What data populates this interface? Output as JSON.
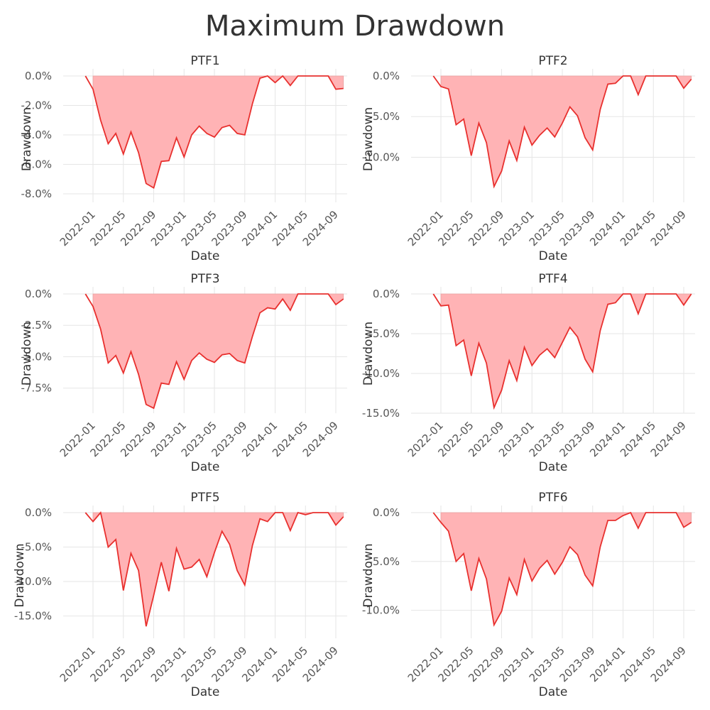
{
  "figure_title": "Maximum Drawdown",
  "colors": {
    "line": "#e8302e",
    "fill": "#ffb3b5",
    "grid": "#e6e6e6",
    "text": "#333333"
  },
  "chart_data": [
    {
      "type": "area",
      "title": "PTF1",
      "xlabel": "Date",
      "ylabel": "Drawdown",
      "x_ticks": [
        "2022-01",
        "2022-05",
        "2022-09",
        "2023-01",
        "2023-05",
        "2023-09",
        "2024-01",
        "2024-05",
        "2024-09"
      ],
      "y_ticks": [
        "0.0%",
        "-2.0%",
        "-4.0%",
        "-6.0%",
        "-8.0%"
      ],
      "ylim": [
        -8.0,
        0.0
      ],
      "x": [
        "2021-12",
        "2022-01",
        "2022-02",
        "2022-03",
        "2022-04",
        "2022-05",
        "2022-06",
        "2022-07",
        "2022-08",
        "2022-09",
        "2022-10",
        "2022-11",
        "2022-12",
        "2023-01",
        "2023-02",
        "2023-03",
        "2023-04",
        "2023-05",
        "2023-06",
        "2023-07",
        "2023-08",
        "2023-09",
        "2023-10",
        "2023-11",
        "2023-12",
        "2024-01",
        "2024-02",
        "2024-03",
        "2024-04",
        "2024-05",
        "2024-06",
        "2024-07",
        "2024-08",
        "2024-09",
        "2024-10"
      ],
      "values": [
        0.0,
        -0.9,
        -3.0,
        -4.6,
        -3.9,
        -5.3,
        -3.8,
        -5.2,
        -7.3,
        -7.6,
        -5.8,
        -5.75,
        -4.2,
        -5.5,
        -4.0,
        -3.4,
        -3.9,
        -4.15,
        -3.5,
        -3.35,
        -3.9,
        -4.0,
        -1.9,
        -0.15,
        0.0,
        -0.45,
        0.0,
        -0.65,
        0.0,
        0.0,
        0.0,
        0.0,
        0.0,
        -0.9,
        -0.85
      ]
    },
    {
      "type": "area",
      "title": "PTF2",
      "xlabel": "Date",
      "ylabel": "Drawdown",
      "x_ticks": [
        "2022-01",
        "2022-05",
        "2022-09",
        "2023-01",
        "2023-05",
        "2023-09",
        "2024-01",
        "2024-05",
        "2024-09"
      ],
      "y_ticks": [
        "0.0%",
        "-5.0%",
        "-10.0%"
      ],
      "ylim": [
        -14.5,
        0.0
      ],
      "x": [
        "2021-12",
        "2022-01",
        "2022-02",
        "2022-03",
        "2022-04",
        "2022-05",
        "2022-06",
        "2022-07",
        "2022-08",
        "2022-09",
        "2022-10",
        "2022-11",
        "2022-12",
        "2023-01",
        "2023-02",
        "2023-03",
        "2023-04",
        "2023-05",
        "2023-06",
        "2023-07",
        "2023-08",
        "2023-09",
        "2023-10",
        "2023-11",
        "2023-12",
        "2024-01",
        "2024-02",
        "2024-03",
        "2024-04",
        "2024-05",
        "2024-06",
        "2024-07",
        "2024-08",
        "2024-09",
        "2024-10"
      ],
      "values": [
        0.0,
        -1.3,
        -1.6,
        -6.0,
        -5.3,
        -9.8,
        -5.8,
        -8.2,
        -13.6,
        -11.7,
        -8.0,
        -10.4,
        -6.3,
        -8.5,
        -7.3,
        -6.4,
        -7.5,
        -5.8,
        -3.8,
        -4.9,
        -7.6,
        -9.1,
        -4.1,
        -1.0,
        -0.9,
        0.0,
        0.0,
        -2.3,
        0.0,
        0.0,
        0.0,
        0.0,
        0.0,
        -1.5,
        -0.4
      ]
    },
    {
      "type": "area",
      "title": "PTF3",
      "xlabel": "Date",
      "ylabel": "Drawdown",
      "x_ticks": [
        "2022-01",
        "2022-05",
        "2022-09",
        "2023-01",
        "2023-05",
        "2023-09",
        "2024-01",
        "2024-05",
        "2024-09"
      ],
      "y_ticks": [
        "0.0%",
        "-2.5%",
        "-5.0%",
        "-7.5%"
      ],
      "ylim": [
        -9.5,
        0.0
      ],
      "x": [
        "2021-12",
        "2022-01",
        "2022-02",
        "2022-03",
        "2022-04",
        "2022-05",
        "2022-06",
        "2022-07",
        "2022-08",
        "2022-09",
        "2022-10",
        "2022-11",
        "2022-12",
        "2023-01",
        "2023-02",
        "2023-03",
        "2023-04",
        "2023-05",
        "2023-06",
        "2023-07",
        "2023-08",
        "2023-09",
        "2023-10",
        "2023-11",
        "2023-12",
        "2024-01",
        "2024-02",
        "2024-03",
        "2024-04",
        "2024-05",
        "2024-06",
        "2024-07",
        "2024-08",
        "2024-09",
        "2024-10"
      ],
      "values": [
        0.0,
        -1.0,
        -2.8,
        -5.5,
        -4.9,
        -6.3,
        -4.6,
        -6.4,
        -8.8,
        -9.1,
        -7.1,
        -7.2,
        -5.4,
        -6.8,
        -5.3,
        -4.7,
        -5.2,
        -5.45,
        -4.85,
        -4.75,
        -5.3,
        -5.5,
        -3.4,
        -1.5,
        -1.1,
        -1.2,
        -0.4,
        -1.3,
        0.0,
        0.0,
        0.0,
        0.0,
        0.0,
        -0.85,
        -0.4
      ]
    },
    {
      "type": "area",
      "title": "PTF4",
      "xlabel": "Date",
      "ylabel": "Drawdown",
      "x_ticks": [
        "2022-01",
        "2022-05",
        "2022-09",
        "2023-01",
        "2023-05",
        "2023-09",
        "2024-01",
        "2024-05",
        "2024-09"
      ],
      "y_ticks": [
        "0.0%",
        "-5.0%",
        "-10.0%",
        "-15.0%"
      ],
      "ylim": [
        -15.0,
        0.0
      ],
      "x": [
        "2021-12",
        "2022-01",
        "2022-02",
        "2022-03",
        "2022-04",
        "2022-05",
        "2022-06",
        "2022-07",
        "2022-08",
        "2022-09",
        "2022-10",
        "2022-11",
        "2022-12",
        "2023-01",
        "2023-02",
        "2023-03",
        "2023-04",
        "2023-05",
        "2023-06",
        "2023-07",
        "2023-08",
        "2023-09",
        "2023-10",
        "2023-11",
        "2023-12",
        "2024-01",
        "2024-02",
        "2024-03",
        "2024-04",
        "2024-05",
        "2024-06",
        "2024-07",
        "2024-08",
        "2024-09",
        "2024-10"
      ],
      "values": [
        0.0,
        -1.5,
        -1.4,
        -6.5,
        -5.8,
        -10.3,
        -6.2,
        -8.7,
        -14.3,
        -12.1,
        -8.4,
        -10.9,
        -6.7,
        -9.0,
        -7.7,
        -6.9,
        -8.0,
        -6.1,
        -4.2,
        -5.4,
        -8.2,
        -9.8,
        -4.6,
        -1.3,
        -1.1,
        0.0,
        0.0,
        -2.5,
        0.0,
        0.0,
        0.0,
        0.0,
        0.0,
        -1.4,
        0.0
      ]
    },
    {
      "type": "area",
      "title": "PTF5",
      "xlabel": "Date",
      "ylabel": "Drawdown",
      "x_ticks": [
        "2022-01",
        "2022-05",
        "2022-09",
        "2023-01",
        "2023-05",
        "2023-09",
        "2024-01",
        "2024-05",
        "2024-09"
      ],
      "y_ticks": [
        "0.0%",
        "-5.0%",
        "-10.0%",
        "-15.0%"
      ],
      "ylim": [
        -17.0,
        0.0
      ],
      "x": [
        "2021-12",
        "2022-01",
        "2022-02",
        "2022-03",
        "2022-04",
        "2022-05",
        "2022-06",
        "2022-07",
        "2022-08",
        "2022-09",
        "2022-10",
        "2022-11",
        "2022-12",
        "2023-01",
        "2023-02",
        "2023-03",
        "2023-04",
        "2023-05",
        "2023-06",
        "2023-07",
        "2023-08",
        "2023-09",
        "2023-10",
        "2023-11",
        "2023-12",
        "2024-01",
        "2024-02",
        "2024-03",
        "2024-04",
        "2024-05",
        "2024-06",
        "2024-07",
        "2024-08",
        "2024-09",
        "2024-10"
      ],
      "values": [
        0.0,
        -1.3,
        0.0,
        -5.0,
        -3.9,
        -11.3,
        -5.9,
        -8.4,
        -16.5,
        -12.0,
        -7.2,
        -11.4,
        -5.2,
        -8.2,
        -7.9,
        -6.8,
        -9.3,
        -5.8,
        -2.7,
        -4.6,
        -8.4,
        -10.5,
        -4.8,
        -0.9,
        -1.3,
        0.0,
        0.0,
        -2.6,
        0.0,
        -0.3,
        0.0,
        0.0,
        0.0,
        -1.8,
        -0.6
      ]
    },
    {
      "type": "area",
      "title": "PTF6",
      "xlabel": "Date",
      "ylabel": "Drawdown",
      "x_ticks": [
        "2022-01",
        "2022-05",
        "2022-09",
        "2023-01",
        "2023-05",
        "2023-09",
        "2024-01",
        "2024-05",
        "2024-09"
      ],
      "y_ticks": [
        "0.0%",
        "-5.0%",
        "-10.0%"
      ],
      "ylim": [
        -12.0,
        0.0
      ],
      "x": [
        "2021-12",
        "2022-01",
        "2022-02",
        "2022-03",
        "2022-04",
        "2022-05",
        "2022-06",
        "2022-07",
        "2022-08",
        "2022-09",
        "2022-10",
        "2022-11",
        "2022-12",
        "2023-01",
        "2023-02",
        "2023-03",
        "2023-04",
        "2023-05",
        "2023-06",
        "2023-07",
        "2023-08",
        "2023-09",
        "2023-10",
        "2023-11",
        "2023-12",
        "2024-01",
        "2024-02",
        "2024-03",
        "2024-04",
        "2024-05",
        "2024-06",
        "2024-07",
        "2024-08",
        "2024-09",
        "2024-10"
      ],
      "values": [
        0.0,
        -1.0,
        -1.9,
        -5.0,
        -4.2,
        -8.0,
        -4.7,
        -6.8,
        -11.5,
        -10.1,
        -6.7,
        -8.4,
        -4.8,
        -7.0,
        -5.7,
        -4.9,
        -6.3,
        -5.1,
        -3.5,
        -4.3,
        -6.4,
        -7.5,
        -3.5,
        -0.8,
        -0.8,
        -0.3,
        0.0,
        -1.6,
        0.0,
        0.0,
        0.0,
        0.0,
        0.0,
        -1.5,
        -1.0
      ]
    }
  ]
}
